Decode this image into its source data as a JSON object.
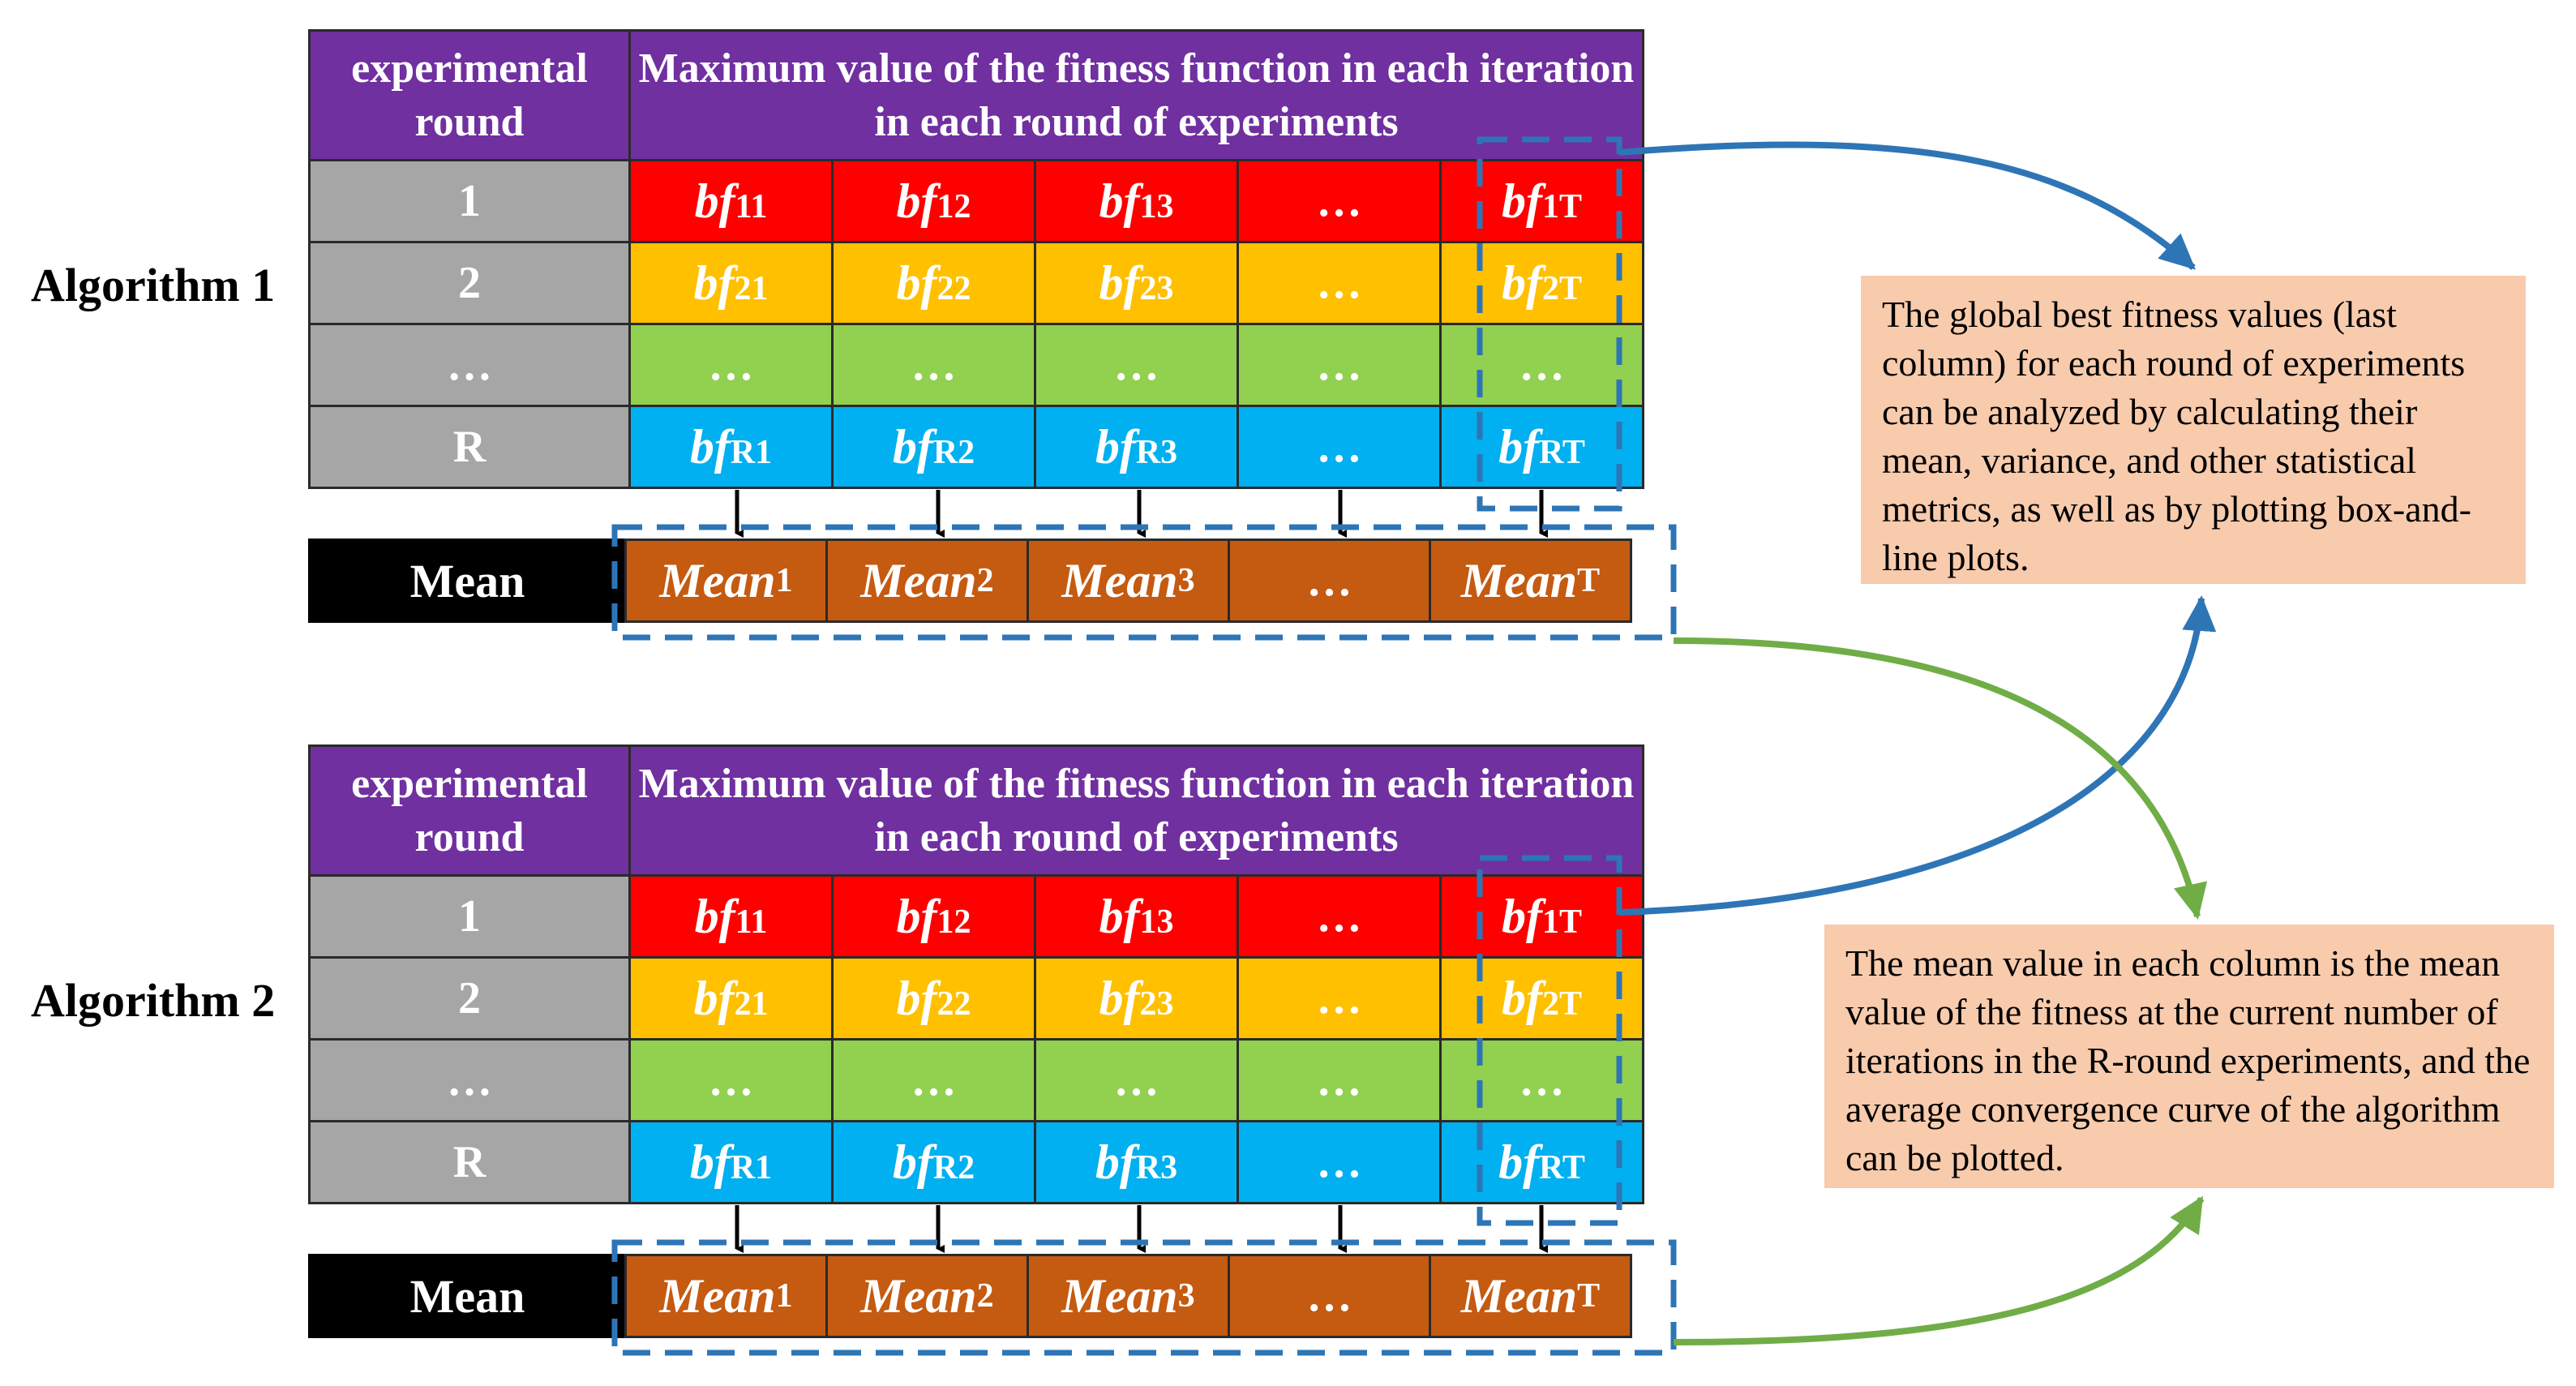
{
  "algorithms": [
    {
      "label": "Algorithm 1",
      "header": {
        "round_col": "experimental round",
        "values_col": "Maximum value of the fitness function in each iteration in each round of experiments"
      },
      "rows": [
        {
          "round": "1",
          "cells": [
            {
              "sym": "bf",
              "sub": "11"
            },
            {
              "sym": "bf",
              "sub": "12"
            },
            {
              "sym": "bf",
              "sub": "13"
            },
            {
              "text": "…"
            },
            {
              "sym": "bf",
              "sub": "1T"
            }
          ]
        },
        {
          "round": "2",
          "cells": [
            {
              "sym": "bf",
              "sub": "21"
            },
            {
              "sym": "bf",
              "sub": "22"
            },
            {
              "sym": "bf",
              "sub": "23"
            },
            {
              "text": "…"
            },
            {
              "sym": "bf",
              "sub": "2T"
            }
          ]
        },
        {
          "round": "…",
          "cells": [
            {
              "text": "…"
            },
            {
              "text": "…"
            },
            {
              "text": "…"
            },
            {
              "text": "…"
            },
            {
              "text": "…"
            }
          ]
        },
        {
          "round": "R",
          "cells": [
            {
              "sym": "bf",
              "sub": "R1"
            },
            {
              "sym": "bf",
              "sub": "R2"
            },
            {
              "sym": "bf",
              "sub": "R3"
            },
            {
              "text": "…"
            },
            {
              "sym": "bf",
              "sub": "RT"
            }
          ]
        }
      ],
      "mean": {
        "label": "Mean",
        "cells": [
          {
            "sym": "Mean",
            "sub": "1"
          },
          {
            "sym": "Mean",
            "sub": "2"
          },
          {
            "sym": "Mean",
            "sub": "3"
          },
          {
            "text": "…"
          },
          {
            "sym": "Mean",
            "sub": "T"
          }
        ]
      }
    },
    {
      "label": "Algorithm 2",
      "header": {
        "round_col": "experimental round",
        "values_col": "Maximum value of the fitness function in each iteration in each round of experiments"
      },
      "rows": [
        {
          "round": "1",
          "cells": [
            {
              "sym": "bf",
              "sub": "11"
            },
            {
              "sym": "bf",
              "sub": "12"
            },
            {
              "sym": "bf",
              "sub": "13"
            },
            {
              "text": "…"
            },
            {
              "sym": "bf",
              "sub": "1T"
            }
          ]
        },
        {
          "round": "2",
          "cells": [
            {
              "sym": "bf",
              "sub": "21"
            },
            {
              "sym": "bf",
              "sub": "22"
            },
            {
              "sym": "bf",
              "sub": "23"
            },
            {
              "text": "…"
            },
            {
              "sym": "bf",
              "sub": "2T"
            }
          ]
        },
        {
          "round": "…",
          "cells": [
            {
              "text": "…"
            },
            {
              "text": "…"
            },
            {
              "text": "…"
            },
            {
              "text": "…"
            },
            {
              "text": "…"
            }
          ]
        },
        {
          "round": "R",
          "cells": [
            {
              "sym": "bf",
              "sub": "R1"
            },
            {
              "sym": "bf",
              "sub": "R2"
            },
            {
              "sym": "bf",
              "sub": "R3"
            },
            {
              "text": "…"
            },
            {
              "sym": "bf",
              "sub": "RT"
            }
          ]
        }
      ],
      "mean": {
        "label": "Mean",
        "cells": [
          {
            "sym": "Mean",
            "sub": "1"
          },
          {
            "sym": "Mean",
            "sub": "2"
          },
          {
            "sym": "Mean",
            "sub": "3"
          },
          {
            "text": "…"
          },
          {
            "sym": "Mean",
            "sub": "T"
          }
        ]
      }
    }
  ],
  "notes": {
    "global_best": "The global best fitness values (last column) for each round of experiments can be analyzed by calculating their mean, variance, and other statistical metrics, as well as by plotting box-and-line plots.",
    "mean_value": "The mean value in each column is the mean value of the fitness at the current number of iterations in the R-round experiments, and the average convergence curve of the algorithm can be plotted."
  },
  "colors": {
    "header": "#7030a0",
    "round_label": "#a6a6a6",
    "row1": "#ff0000",
    "row2": "#ffc000",
    "row3": "#92d050",
    "row4": "#00b0f0",
    "mean_label": "#000000",
    "mean_cells": "#c55a11",
    "note_bg": "#f8cbad",
    "dash_box": "#2e75b6",
    "arrow_blue": "#2e75b6",
    "arrow_green": "#70ad47"
  }
}
